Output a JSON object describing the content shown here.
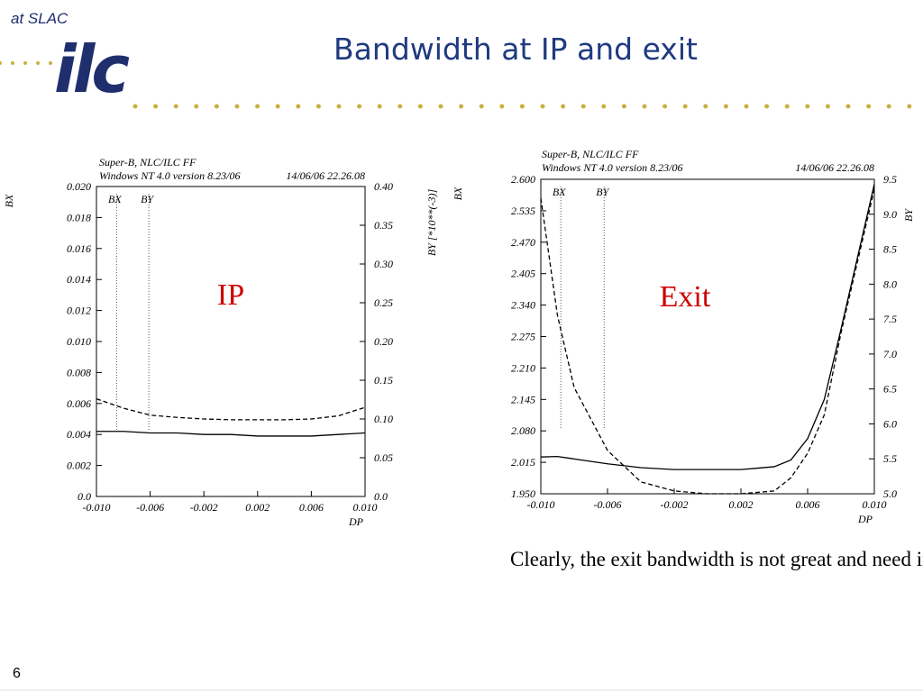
{
  "header": {
    "logo_text": "at SLAC",
    "logo": "ilc",
    "title": "Bandwidth at IP and exit"
  },
  "chart_data": [
    {
      "type": "line",
      "title_lines": [
        "Super-B, NLC/ILC FF",
        "Windows NT 4.0 version 8.23/06",
        "14/06/06  22.26.08"
      ],
      "label": "IP",
      "xlabel": "DP",
      "ylabel": "BX",
      "y2label": "BY  [*10**(-3)]",
      "x": [
        -0.01,
        -0.008,
        -0.006,
        -0.004,
        -0.002,
        0,
        0.002,
        0.004,
        0.006,
        0.008,
        0.01
      ],
      "series": [
        {
          "name": "BX",
          "color": "#000000",
          "line_style": "solid",
          "values": [
            0.0042,
            0.0042,
            0.0041,
            0.0041,
            0.004,
            0.004,
            0.0039,
            0.0039,
            0.0039,
            0.004,
            0.0041
          ]
        },
        {
          "name": "BY",
          "color": "#000000",
          "line_style": "dashed",
          "axis": "y2",
          "values": [
            0.126,
            0.114,
            0.105,
            0.102,
            0.1,
            0.099,
            0.099,
            0.099,
            0.1,
            0.104,
            0.115
          ]
        }
      ],
      "markers": [
        {
          "x": -0.0085
        },
        {
          "x": -0.0061
        }
      ],
      "xlim": [
        -0.01,
        0.01
      ],
      "xticks": [
        {
          "value": -0.01,
          "label": "-0.010"
        },
        {
          "value": -0.006,
          "label": "-0.006"
        },
        {
          "value": -0.002,
          "label": "-0.002"
        },
        {
          "value": 0.002,
          "label": "0.002"
        },
        {
          "value": 0.006,
          "label": "0.006"
        },
        {
          "value": 0.01,
          "label": "0.010"
        }
      ],
      "ylim": [
        0,
        0.02
      ],
      "yticks": [
        {
          "value": 0,
          "label": "0.0"
        },
        {
          "value": 0.002,
          "label": "0.002"
        },
        {
          "value": 0.004,
          "label": "0.004"
        },
        {
          "value": 0.006,
          "label": "0.006"
        },
        {
          "value": 0.008,
          "label": "0.008"
        },
        {
          "value": 0.01,
          "label": "0.010"
        },
        {
          "value": 0.012,
          "label": "0.012"
        },
        {
          "value": 0.014,
          "label": "0.014"
        },
        {
          "value": 0.016,
          "label": "0.016"
        },
        {
          "value": 0.018,
          "label": "0.018"
        },
        {
          "value": 0.02,
          "label": "0.020"
        }
      ],
      "y2lim": [
        0,
        0.4
      ],
      "y2ticks": [
        {
          "value": 0,
          "label": "0.0"
        },
        {
          "value": 0.05,
          "label": "0.05"
        },
        {
          "value": 0.1,
          "label": "0.10"
        },
        {
          "value": 0.15,
          "label": "0.15"
        },
        {
          "value": 0.2,
          "label": "0.20"
        },
        {
          "value": 0.25,
          "label": "0.25"
        },
        {
          "value": 0.3,
          "label": "0.30"
        },
        {
          "value": 0.35,
          "label": "0.35"
        },
        {
          "value": 0.4,
          "label": "0.40"
        }
      ]
    },
    {
      "type": "line",
      "title_lines": [
        "Super-B, NLC/ILC FF",
        "Windows NT 4.0 version 8.23/06",
        "14/06/06  22.26.08"
      ],
      "label": "Exit",
      "xlabel": "DP",
      "ylabel": "BX",
      "y2label": "BY",
      "x": [
        -0.01,
        -0.009,
        -0.008,
        -0.006,
        -0.004,
        -0.002,
        0,
        0.002,
        0.003,
        0.004,
        0.005,
        0.006,
        0.007,
        0.008,
        0.009,
        0.01
      ],
      "series": [
        {
          "name": "BX",
          "color": "#000000",
          "line_style": "solid",
          "values": [
            2.026,
            2.027,
            2.022,
            2.012,
            2.004,
            2.0,
            2.0,
            2.0,
            2.003,
            2.006,
            2.02,
            2.064,
            2.145,
            2.29,
            2.44,
            2.59
          ]
        },
        {
          "name": "BY",
          "color": "#000000",
          "line_style": "dashed",
          "axis": "y2",
          "values": [
            9.23,
            7.55,
            6.52,
            5.62,
            5.17,
            5.04,
            5.0,
            5.0,
            5.02,
            5.04,
            5.23,
            5.58,
            6.13,
            7.3,
            8.33,
            9.36
          ]
        }
      ],
      "markers": [
        {
          "x": -0.0088
        },
        {
          "x": -0.0062
        }
      ],
      "xlim": [
        -0.01,
        0.01
      ],
      "xticks": [
        {
          "value": -0.01,
          "label": "-0.010"
        },
        {
          "value": -0.006,
          "label": "-0.006"
        },
        {
          "value": -0.002,
          "label": "-0.002"
        },
        {
          "value": 0.002,
          "label": "0.002"
        },
        {
          "value": 0.006,
          "label": "0.006"
        },
        {
          "value": 0.01,
          "label": "0.010"
        }
      ],
      "ylim": [
        1.95,
        2.6
      ],
      "yticks": [
        {
          "value": 1.95,
          "label": "1.950"
        },
        {
          "value": 2.015,
          "label": "2.015"
        },
        {
          "value": 2.08,
          "label": "2.080"
        },
        {
          "value": 2.145,
          "label": "2.145"
        },
        {
          "value": 2.21,
          "label": "2.210"
        },
        {
          "value": 2.275,
          "label": "2.275"
        },
        {
          "value": 2.34,
          "label": "2.340"
        },
        {
          "value": 2.405,
          "label": "2.405"
        },
        {
          "value": 2.47,
          "label": "2.470"
        },
        {
          "value": 2.535,
          "label": "2.535"
        },
        {
          "value": 2.6,
          "label": "2.600"
        }
      ],
      "y2lim": [
        5.0,
        9.5
      ],
      "y2ticks": [
        {
          "value": 5.0,
          "label": "5.0"
        },
        {
          "value": 5.5,
          "label": "5.5"
        },
        {
          "value": 6.0,
          "label": "6.0"
        },
        {
          "value": 6.5,
          "label": "6.5"
        },
        {
          "value": 7.0,
          "label": "7.0"
        },
        {
          "value": 7.5,
          "label": "7.5"
        },
        {
          "value": 8.0,
          "label": "8.0"
        },
        {
          "value": 8.5,
          "label": "8.5"
        },
        {
          "value": 9.0,
          "label": "9.0"
        },
        {
          "value": 9.5,
          "label": "9.5"
        }
      ]
    }
  ],
  "note": "Clearly, the exit bandwidth is not great and need improvements",
  "page_number": "6"
}
